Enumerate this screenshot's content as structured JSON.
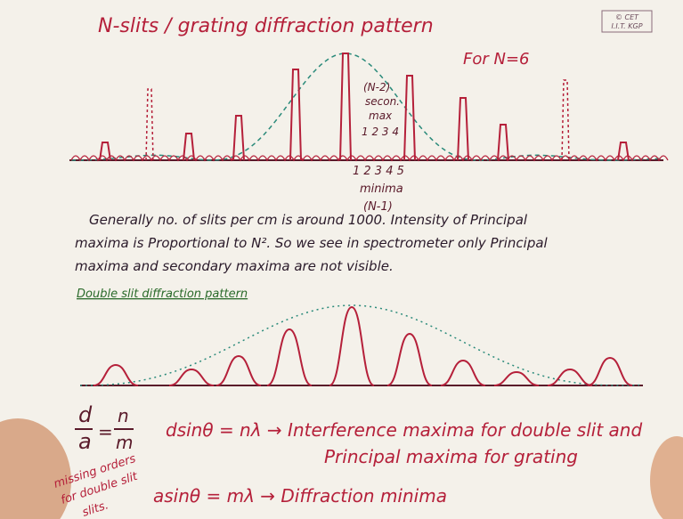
{
  "header": {
    "title": "N-slits / grating diffraction pattern",
    "note": "For N=6",
    "logo": [
      "© CET",
      "I.I.T. KGP"
    ]
  },
  "grating_figure": {
    "secondary_max_label": [
      "(N-2)",
      "secon.",
      "max"
    ],
    "secondary_max_numbers": "1 2 3 4",
    "minima_numbers": "1 2 3 4 5",
    "minima_label": [
      "minima",
      "(N-1)"
    ]
  },
  "paragraph": [
    "Generally no. of slits per cm is around 1000. Intensity of Principal",
    "maxima is Proportional to N². So we see in spectrometer only Principal",
    "maxima and secondary maxima are not visible."
  ],
  "double_slit": {
    "title": "Double slit diffraction pattern"
  },
  "equations": {
    "ratio": {
      "left_top": "d",
      "left_bottom": "a",
      "right_top": "n",
      "right_bottom": "m"
    },
    "missing_orders": [
      "missing orders",
      "for double slit",
      "slits."
    ],
    "interference": "dsinθ = nλ → Interference maxima for double slit and",
    "interference_cont": "Principal maxima for grating",
    "diffraction": "asinθ = mλ → Diffraction minima"
  }
}
